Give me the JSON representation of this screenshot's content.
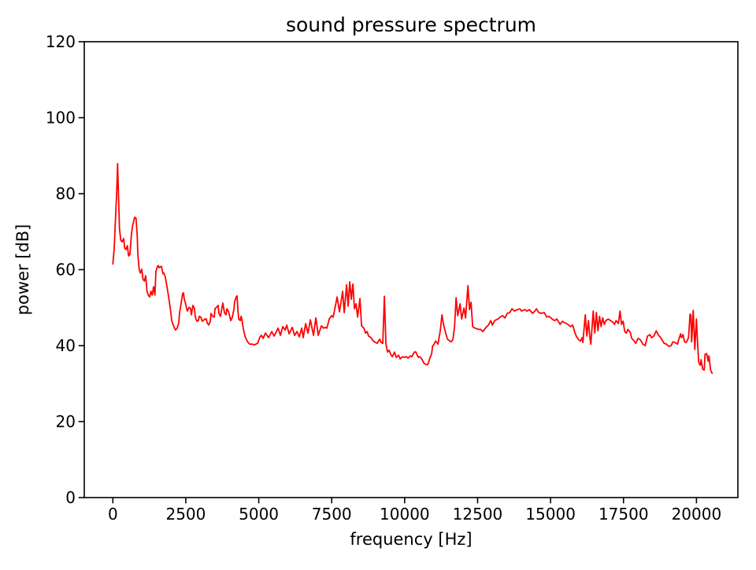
{
  "figure": {
    "background": "#ffffff",
    "spine_color": "#000000",
    "text_color": "#000000"
  },
  "chart_data": {
    "type": "line",
    "title": "sound pressure spectrum",
    "xlabel": "frequency [Hz]",
    "ylabel": "power [dB]",
    "xlim": [
      -980,
      21420
    ],
    "ylim": [
      0,
      120
    ],
    "xticks": [
      0,
      2500,
      5000,
      7500,
      10000,
      12500,
      15000,
      17500,
      20000
    ],
    "xtick_labels": [
      "0",
      "2500",
      "5000",
      "7500",
      "10000",
      "12500",
      "15000",
      "17500",
      "20000"
    ],
    "yticks": [
      0,
      20,
      40,
      60,
      80,
      100,
      120
    ],
    "ytick_labels": [
      "0",
      "20",
      "40",
      "60",
      "80",
      "100",
      "120"
    ],
    "grid": false,
    "legend": null,
    "line_color": "#ff0000",
    "series": [
      {
        "name": "sound pressure",
        "x": [
          0,
          45,
          92,
          135,
          162,
          227,
          270,
          316,
          370,
          405,
          450,
          497,
          540,
          585,
          632,
          675,
          748,
          794,
          837,
          856,
          902,
          945,
          991,
          1037,
          1080,
          1126,
          1171,
          1215,
          1261,
          1307,
          1350,
          1396,
          1441,
          1476,
          1531,
          1558,
          1585,
          1666,
          1719,
          1746,
          1800,
          1881,
          1935,
          1989,
          2016,
          2070,
          2124,
          2151,
          2205,
          2259,
          2286,
          2340,
          2394,
          2421,
          2448,
          2475,
          2529,
          2556,
          2610,
          2664,
          2691,
          2745,
          2799,
          2826,
          2880,
          2934,
          2961,
          3015,
          3069,
          3096,
          3150,
          3204,
          3231,
          3285,
          3339,
          3366,
          3420,
          3474,
          3501,
          3555,
          3609,
          3636,
          3690,
          3744,
          3771,
          3825,
          3879,
          3906,
          3960,
          4014,
          4041,
          4095,
          4149,
          4176,
          4230,
          4257,
          4284,
          4311,
          4365,
          4392,
          4419,
          4473,
          4527,
          4581,
          4635,
          4689,
          4770,
          4851,
          4905,
          4959,
          5040,
          5094,
          5148,
          5229,
          5337,
          5445,
          5526,
          5661,
          5742,
          5823,
          5904,
          5958,
          6039,
          6147,
          6228,
          6309,
          6390,
          6471,
          6525,
          6606,
          6687,
          6768,
          6876,
          6957,
          7038,
          7146,
          7227,
          7281,
          7335,
          7416,
          7497,
          7551,
          7686,
          7767,
          7875,
          7929,
          8010,
          8064,
          8118,
          8172,
          8226,
          8280,
          8334,
          8388,
          8469,
          8523,
          8604,
          8658,
          8712,
          8766,
          8847,
          8928,
          9009,
          9063,
          9144,
          9198,
          9252,
          9306,
          9360,
          9414,
          9468,
          9522,
          9576,
          9657,
          9711,
          9792,
          9846,
          9927,
          9981,
          10062,
          10116,
          10197,
          10251,
          10332,
          10386,
          10467,
          10521,
          10602,
          10656,
          10737,
          10791,
          10872,
          10926,
          10953,
          11007,
          11061,
          11142,
          11223,
          11277,
          11331,
          11412,
          11466,
          11547,
          11601,
          11655,
          11709,
          11763,
          11817,
          11898,
          11952,
          12033,
          12087,
          12168,
          12222,
          12276,
          12330,
          12411,
          12519,
          12600,
          12681,
          12789,
          12870,
          12951,
          13005,
          13086,
          13194,
          13275,
          13356,
          13437,
          13518,
          13599,
          13680,
          13761,
          13869,
          13950,
          14004,
          14112,
          14193,
          14274,
          14382,
          14463,
          14517,
          14598,
          14679,
          14787,
          14868,
          14949,
          15057,
          15138,
          15219,
          15327,
          15408,
          15489,
          15597,
          15678,
          15759,
          15840,
          15894,
          15975,
          16029,
          16083,
          16110,
          16191,
          16245,
          16299,
          16353,
          16380,
          16461,
          16515,
          16569,
          16623,
          16677,
          16731,
          16785,
          16839,
          16893,
          16974,
          17055,
          17136,
          17190,
          17244,
          17325,
          17379,
          17433,
          17487,
          17541,
          17595,
          17649,
          17730,
          17784,
          17865,
          17919,
          18000,
          18081,
          18162,
          18243,
          18324,
          18405,
          18459,
          18540,
          18621,
          18702,
          18756,
          18891,
          18972,
          19053,
          19134,
          19188,
          19269,
          19350,
          19404,
          19458,
          19485,
          19539,
          19593,
          19647,
          19728,
          19782,
          19809,
          19836,
          19890,
          19944,
          19998,
          20052,
          20079,
          20133,
          20160,
          20214,
          20268,
          20295,
          20349,
          20403,
          20430,
          20484,
          20538
        ],
        "y": [
          61.5,
          65.5,
          73.6,
          81.0,
          87.9,
          70.9,
          67.8,
          67.3,
          68.2,
          65.7,
          65.3,
          66.3,
          63.6,
          64.0,
          68.8,
          71.5,
          73.8,
          73.6,
          68.8,
          64.2,
          60.1,
          59.1,
          60.1,
          57.4,
          57.0,
          58.4,
          54.3,
          53.3,
          52.8,
          54.3,
          53.3,
          55.5,
          53.3,
          59.5,
          60.9,
          61.1,
          60.5,
          60.9,
          58.9,
          59.1,
          58.0,
          54.3,
          51.6,
          48.7,
          46.6,
          45.4,
          44.4,
          44.1,
          44.6,
          46.0,
          48.5,
          51.2,
          53.7,
          53.9,
          52.2,
          51.6,
          49.7,
          49.1,
          50.1,
          49.7,
          48.1,
          50.6,
          49.7,
          47.5,
          46.4,
          46.6,
          47.7,
          47.5,
          46.4,
          46.6,
          47.0,
          47.0,
          46.0,
          45.4,
          46.4,
          48.5,
          47.7,
          47.5,
          49.7,
          50.1,
          50.6,
          48.5,
          47.7,
          50.1,
          51.2,
          48.7,
          48.1,
          49.7,
          49.1,
          47.5,
          46.6,
          47.5,
          49.5,
          51.6,
          52.8,
          53.1,
          49.7,
          47.0,
          46.6,
          47.7,
          47.0,
          44.3,
          42.5,
          41.5,
          40.8,
          40.4,
          40.4,
          40.2,
          40.4,
          40.6,
          42.3,
          42.7,
          41.9,
          43.3,
          42.1,
          43.7,
          42.5,
          44.6,
          42.7,
          45.0,
          44.1,
          45.4,
          43.1,
          44.8,
          42.7,
          43.7,
          42.3,
          44.6,
          42.1,
          45.8,
          43.3,
          46.8,
          42.7,
          47.3,
          42.7,
          45.2,
          44.6,
          44.8,
          44.6,
          47.0,
          47.9,
          47.5,
          52.8,
          48.9,
          54.3,
          48.7,
          56.0,
          50.4,
          56.8,
          52.2,
          56.2,
          49.7,
          51.0,
          47.5,
          52.4,
          45.2,
          44.6,
          43.3,
          43.7,
          42.5,
          42.1,
          41.2,
          40.8,
          40.6,
          41.7,
          40.8,
          40.6,
          53.0,
          40.4,
          38.3,
          38.8,
          37.7,
          37.1,
          38.3,
          36.9,
          37.5,
          36.5,
          37.1,
          36.9,
          37.1,
          36.7,
          37.3,
          37.1,
          38.3,
          38.3,
          36.9,
          37.1,
          36.3,
          35.4,
          35.0,
          35.0,
          36.9,
          37.9,
          39.8,
          40.4,
          41.2,
          40.4,
          44.1,
          48.1,
          45.6,
          43.1,
          41.7,
          41.2,
          41.0,
          41.7,
          45.0,
          52.6,
          47.9,
          51.0,
          47.0,
          49.9,
          47.3,
          55.8,
          49.5,
          51.4,
          45.0,
          44.6,
          44.3,
          44.3,
          43.7,
          44.8,
          45.4,
          46.6,
          45.4,
          46.6,
          47.0,
          47.5,
          47.9,
          47.3,
          48.5,
          48.7,
          49.7,
          49.1,
          49.5,
          49.7,
          49.1,
          49.5,
          49.1,
          49.5,
          48.5,
          49.1,
          49.7,
          48.7,
          48.5,
          48.7,
          47.5,
          47.7,
          47.0,
          46.6,
          47.0,
          45.6,
          46.4,
          46.0,
          45.6,
          45.0,
          45.4,
          43.3,
          42.3,
          41.5,
          41.2,
          42.1,
          40.8,
          48.1,
          42.5,
          46.6,
          41.9,
          40.4,
          49.1,
          43.3,
          48.7,
          43.9,
          47.7,
          45.0,
          47.3,
          45.6,
          46.6,
          47.0,
          46.6,
          46.2,
          45.6,
          46.6,
          45.8,
          49.1,
          45.6,
          46.4,
          43.7,
          43.3,
          44.3,
          43.5,
          41.9,
          41.2,
          40.6,
          41.9,
          41.5,
          40.4,
          40.0,
          42.5,
          42.9,
          42.1,
          42.5,
          43.9,
          42.7,
          42.3,
          40.6,
          40.4,
          39.8,
          40.0,
          41.0,
          40.8,
          40.4,
          41.9,
          43.1,
          42.1,
          42.9,
          41.0,
          40.8,
          42.1,
          48.3,
          48.1,
          41.0,
          49.3,
          39.0,
          47.0,
          38.8,
          35.6,
          34.8,
          36.3,
          33.8,
          33.6,
          37.7,
          37.9,
          35.9,
          37.3,
          33.6,
          32.7
        ]
      }
    ]
  }
}
